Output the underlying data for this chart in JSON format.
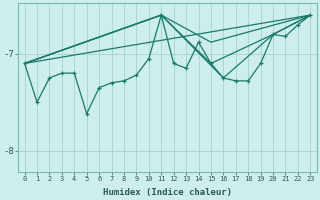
{
  "xlabel": "Humidex (Indice chaleur)",
  "background_color": "#cdeeed",
  "grid_color": "#a8d8d4",
  "line_color": "#1a7a6a",
  "xlim": [
    -0.5,
    23.5
  ],
  "ylim": [
    -8.22,
    -6.48
  ],
  "yticks": [
    -8,
    -7
  ],
  "xticks": [
    0,
    1,
    2,
    3,
    4,
    5,
    6,
    7,
    8,
    9,
    10,
    11,
    12,
    13,
    14,
    15,
    16,
    17,
    18,
    19,
    20,
    21,
    22,
    23
  ],
  "main_line": {
    "x": [
      0,
      1,
      2,
      3,
      4,
      5,
      6,
      7,
      8,
      9,
      10,
      11,
      12,
      13,
      14,
      15,
      16,
      17,
      18,
      19,
      20,
      21,
      22,
      23
    ],
    "y": [
      -7.1,
      -7.5,
      -7.25,
      -7.2,
      -7.2,
      -7.62,
      -7.35,
      -7.3,
      -7.28,
      -7.22,
      -7.05,
      -6.6,
      -7.1,
      -7.15,
      -6.88,
      -7.1,
      -7.25,
      -7.28,
      -7.28,
      -7.1,
      -6.8,
      -6.82,
      -6.7,
      -6.6
    ]
  },
  "trend_lines": [
    {
      "x": [
        0,
        23
      ],
      "y": [
        -7.1,
        -6.6
      ]
    },
    {
      "x": [
        0,
        11,
        15,
        23
      ],
      "y": [
        -7.1,
        -6.6,
        -6.88,
        -6.6
      ]
    },
    {
      "x": [
        0,
        11,
        15,
        20,
        23
      ],
      "y": [
        -7.1,
        -6.6,
        -7.1,
        -6.8,
        -6.6
      ]
    },
    {
      "x": [
        0,
        11,
        16,
        20,
        23
      ],
      "y": [
        -7.1,
        -6.6,
        -7.25,
        -6.8,
        -6.6
      ]
    }
  ]
}
